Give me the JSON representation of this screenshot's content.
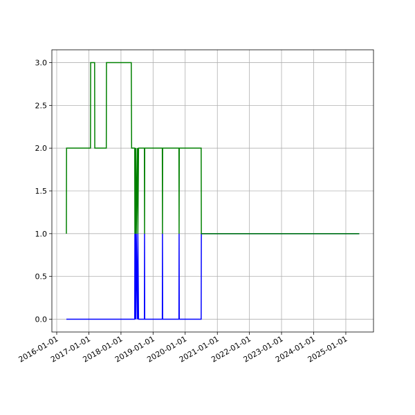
{
  "chart_data": {
    "type": "line",
    "x": [
      "2016-04-20",
      "2016-04-22",
      "2017-01-19",
      "2017-01-21",
      "2017-03-07",
      "2017-03-09",
      "2017-07-18",
      "2017-07-20",
      "2018-04-28",
      "2018-05-02",
      "2018-06-06",
      "2018-06-08",
      "2018-06-12",
      "2018-06-16",
      "2018-06-20",
      "2018-06-24",
      "2018-07-08",
      "2018-07-12",
      "2018-07-20",
      "2018-07-24",
      "2018-09-24",
      "2018-09-26",
      "2018-09-28",
      "2019-04-16",
      "2019-04-18",
      "2019-04-20",
      "2019-10-22",
      "2019-10-24",
      "2019-10-26",
      "2020-07-01",
      "2020-07-03",
      "2025-06-03"
    ],
    "series": [
      {
        "color": "#0000ff",
        "values": [
          0,
          0,
          0,
          0,
          0,
          0,
          0,
          0,
          0,
          0,
          0,
          1,
          0,
          1,
          0,
          1,
          0,
          1,
          0,
          0,
          0,
          1,
          0,
          0,
          1,
          0,
          0,
          1,
          0,
          0,
          1,
          1
        ]
      },
      {
        "color": "#008000",
        "values": [
          1,
          2,
          2,
          3,
          3,
          2,
          2,
          3,
          3,
          2,
          2,
          1,
          2,
          1,
          2,
          1,
          2,
          1,
          2,
          2,
          2,
          1,
          2,
          2,
          1,
          2,
          2,
          1,
          2,
          2,
          1,
          1
        ]
      }
    ],
    "xlim": [
      "2015-11-07",
      "2025-11-12"
    ],
    "xticks": [
      "2016-01-01",
      "2017-01-01",
      "2018-01-01",
      "2019-01-01",
      "2020-01-01",
      "2021-01-01",
      "2022-01-01",
      "2023-01-01",
      "2024-01-01",
      "2025-01-01"
    ],
    "ylim": [
      -0.15,
      3.15
    ],
    "yticks": [
      {
        "value": 0,
        "label": "0.0"
      },
      0.5,
      {
        "value": 1,
        "label": "1.0"
      },
      1.5,
      {
        "value": 2,
        "label": "2.0"
      },
      2.5,
      {
        "value": 3,
        "label": "3.0"
      }
    ],
    "grid": true
  }
}
